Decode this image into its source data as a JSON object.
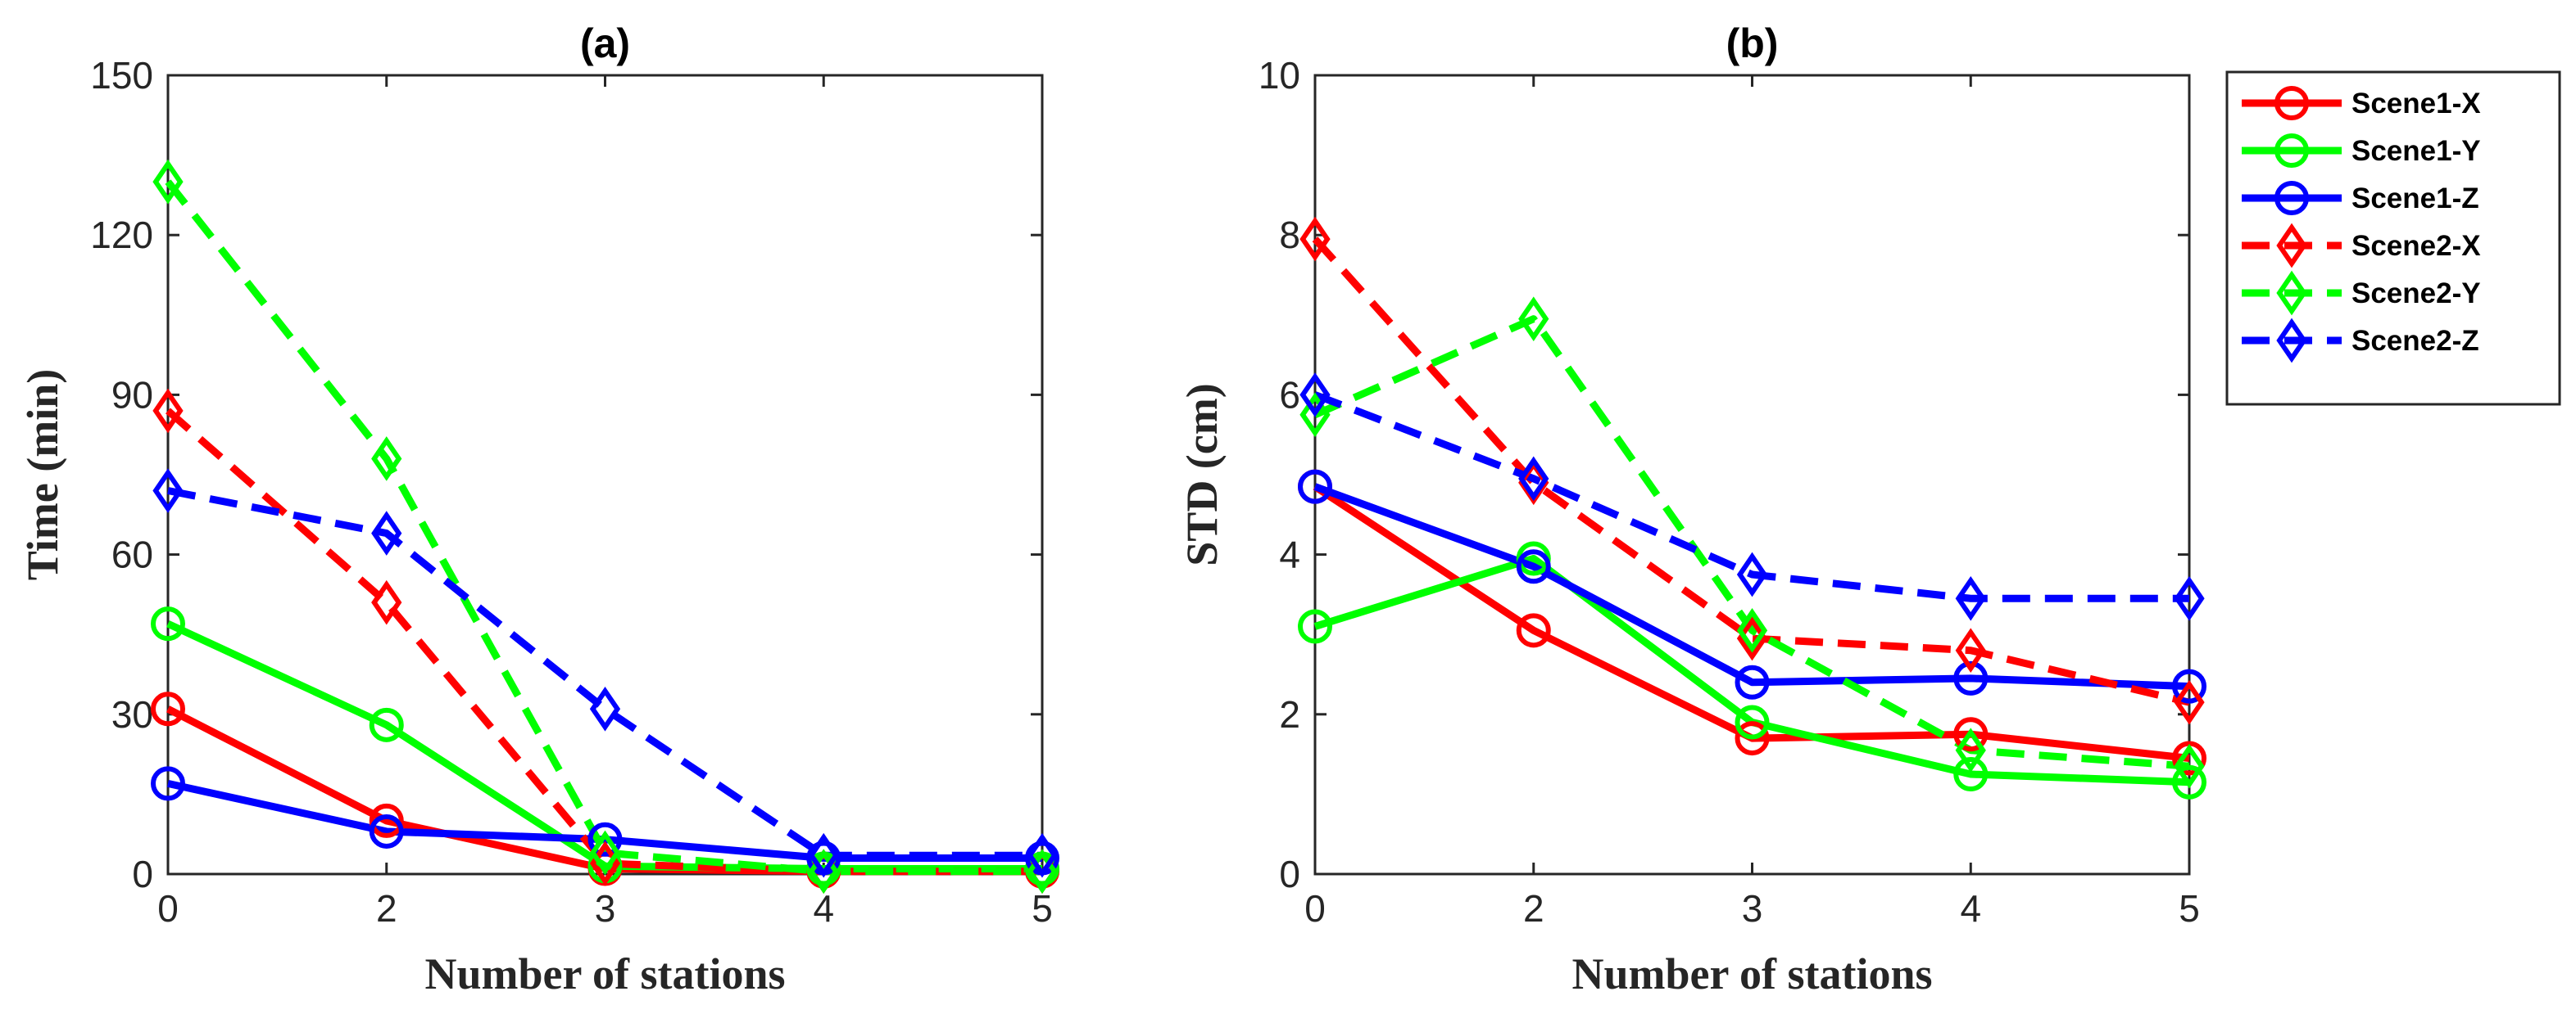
{
  "chart_data": [
    {
      "type": "line",
      "id": "a",
      "title": "(a)",
      "xlabel": "Number of stations",
      "ylabel": "Time (min)",
      "x_categories": [
        "0",
        "2",
        "3",
        "4",
        "5"
      ],
      "ylim": [
        0,
        150
      ],
      "yticks": [
        0,
        30,
        60,
        90,
        120,
        150
      ],
      "series": [
        {
          "name": "Scene1-X",
          "color": "#ff0000",
          "dash": false,
          "marker": "circle",
          "values": [
            31,
            10,
            1,
            0.5,
            0.5
          ]
        },
        {
          "name": "Scene1-Y",
          "color": "#00ff00",
          "dash": false,
          "marker": "circle",
          "values": [
            47,
            28,
            1.5,
            1,
            1
          ]
        },
        {
          "name": "Scene1-Z",
          "color": "#0000ff",
          "dash": false,
          "marker": "circle",
          "values": [
            17,
            8,
            6.5,
            3,
            3
          ]
        },
        {
          "name": "Scene2-X",
          "color": "#ff0000",
          "dash": true,
          "marker": "diamond",
          "values": [
            87,
            51,
            2,
            0.5,
            0.5
          ]
        },
        {
          "name": "Scene2-Y",
          "color": "#00ff00",
          "dash": true,
          "marker": "diamond",
          "values": [
            130,
            78,
            4,
            0.5,
            0.5
          ]
        },
        {
          "name": "Scene2-Z",
          "color": "#0000ff",
          "dash": true,
          "marker": "diamond",
          "values": [
            72,
            64,
            31,
            3.5,
            3.5
          ]
        }
      ]
    },
    {
      "type": "line",
      "id": "b",
      "title": "(b)",
      "xlabel": "Number of stations",
      "ylabel": "STD (cm)",
      "x_categories": [
        "0",
        "2",
        "3",
        "4",
        "5"
      ],
      "ylim": [
        0,
        10
      ],
      "yticks": [
        0,
        2,
        4,
        6,
        8,
        10
      ],
      "series": [
        {
          "name": "Scene1-X",
          "color": "#ff0000",
          "dash": false,
          "marker": "circle",
          "values": [
            4.85,
            3.05,
            1.7,
            1.75,
            1.45
          ]
        },
        {
          "name": "Scene1-Y",
          "color": "#00ff00",
          "dash": false,
          "marker": "circle",
          "values": [
            3.1,
            3.95,
            1.9,
            1.25,
            1.15
          ]
        },
        {
          "name": "Scene1-Z",
          "color": "#0000ff",
          "dash": false,
          "marker": "circle",
          "values": [
            4.85,
            3.85,
            2.4,
            2.45,
            2.35
          ]
        },
        {
          "name": "Scene2-X",
          "color": "#ff0000",
          "dash": true,
          "marker": "diamond",
          "values": [
            7.95,
            4.9,
            2.95,
            2.8,
            2.15
          ]
        },
        {
          "name": "Scene2-Y",
          "color": "#00ff00",
          "dash": true,
          "marker": "diamond",
          "values": [
            5.75,
            6.95,
            3.05,
            1.55,
            1.35
          ]
        },
        {
          "name": "Scene2-Z",
          "color": "#0000ff",
          "dash": true,
          "marker": "diamond",
          "values": [
            6.0,
            4.95,
            3.75,
            3.45,
            3.45
          ]
        }
      ]
    }
  ],
  "legend": {
    "placement": "outside-right",
    "entries": [
      "Scene1-X",
      "Scene1-Y",
      "Scene1-Z",
      "Scene2-X",
      "Scene2-Y",
      "Scene2-Z"
    ]
  }
}
